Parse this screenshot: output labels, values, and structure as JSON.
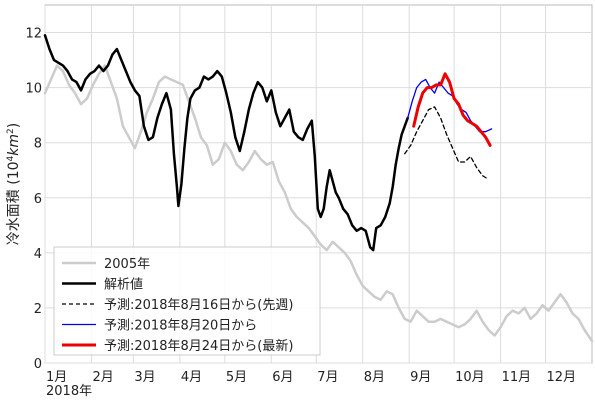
{
  "chart_data": {
    "type": "line",
    "title": "",
    "ylabel_main": "冷水面積 (10",
    "ylabel_exp": "4",
    "ylabel_unit": "km",
    "ylabel_exp2": "2",
    "ylabel_close": ")",
    "xlabel": "",
    "year_label": "2018年",
    "ylim": [
      0,
      13
    ],
    "xlim": [
      0,
      365
    ],
    "grid": true,
    "legend_position": "lower-left",
    "yticks": [
      0,
      2,
      4,
      6,
      8,
      10,
      12
    ],
    "xticks": [
      {
        "label": "1月",
        "day": 0
      },
      {
        "label": "2月",
        "day": 31
      },
      {
        "label": "3月",
        "day": 59
      },
      {
        "label": "4月",
        "day": 90
      },
      {
        "label": "5月",
        "day": 120
      },
      {
        "label": "6月",
        "day": 151
      },
      {
        "label": "7月",
        "day": 181
      },
      {
        "label": "8月",
        "day": 212
      },
      {
        "label": "9月",
        "day": 243
      },
      {
        "label": "10月",
        "day": 273
      },
      {
        "label": "11月",
        "day": 304
      },
      {
        "label": "12月",
        "day": 334
      }
    ],
    "series": [
      {
        "name": "2005年",
        "color": "#cccccc",
        "style": "solid",
        "points": [
          [
            0,
            9.8
          ],
          [
            4,
            10.3
          ],
          [
            8,
            10.8
          ],
          [
            12,
            10.6
          ],
          [
            16,
            10.1
          ],
          [
            20,
            9.8
          ],
          [
            24,
            9.4
          ],
          [
            28,
            9.6
          ],
          [
            32,
            10.1
          ],
          [
            36,
            10.5
          ],
          [
            40,
            10.8
          ],
          [
            44,
            10.2
          ],
          [
            48,
            9.6
          ],
          [
            52,
            8.6
          ],
          [
            56,
            8.2
          ],
          [
            60,
            7.8
          ],
          [
            64,
            8.4
          ],
          [
            68,
            9.1
          ],
          [
            72,
            9.6
          ],
          [
            76,
            10.2
          ],
          [
            80,
            10.4
          ],
          [
            84,
            10.3
          ],
          [
            88,
            10.2
          ],
          [
            92,
            10.1
          ],
          [
            96,
            9.5
          ],
          [
            100,
            8.9
          ],
          [
            104,
            8.2
          ],
          [
            108,
            7.9
          ],
          [
            112,
            7.2
          ],
          [
            116,
            7.4
          ],
          [
            120,
            8.0
          ],
          [
            124,
            7.7
          ],
          [
            128,
            7.2
          ],
          [
            132,
            7.0
          ],
          [
            136,
            7.3
          ],
          [
            140,
            7.7
          ],
          [
            144,
            7.4
          ],
          [
            148,
            7.2
          ],
          [
            152,
            7.3
          ],
          [
            156,
            6.6
          ],
          [
            160,
            6.2
          ],
          [
            164,
            5.6
          ],
          [
            168,
            5.3
          ],
          [
            172,
            5.1
          ],
          [
            176,
            4.9
          ],
          [
            180,
            4.6
          ],
          [
            184,
            4.3
          ],
          [
            188,
            4.1
          ],
          [
            192,
            4.4
          ],
          [
            196,
            4.2
          ],
          [
            200,
            4.0
          ],
          [
            204,
            3.7
          ],
          [
            208,
            3.2
          ],
          [
            212,
            2.8
          ],
          [
            216,
            2.6
          ],
          [
            220,
            2.4
          ],
          [
            224,
            2.3
          ],
          [
            228,
            2.6
          ],
          [
            232,
            2.5
          ],
          [
            236,
            2.0
          ],
          [
            240,
            1.6
          ],
          [
            244,
            1.5
          ],
          [
            248,
            1.9
          ],
          [
            252,
            1.7
          ],
          [
            256,
            1.5
          ],
          [
            260,
            1.5
          ],
          [
            264,
            1.6
          ],
          [
            268,
            1.5
          ],
          [
            272,
            1.4
          ],
          [
            276,
            1.3
          ],
          [
            280,
            1.4
          ],
          [
            284,
            1.6
          ],
          [
            288,
            1.9
          ],
          [
            292,
            1.5
          ],
          [
            296,
            1.2
          ],
          [
            300,
            1.0
          ],
          [
            304,
            1.3
          ],
          [
            308,
            1.7
          ],
          [
            312,
            1.9
          ],
          [
            316,
            1.8
          ],
          [
            320,
            2.0
          ],
          [
            324,
            1.6
          ],
          [
            328,
            1.8
          ],
          [
            332,
            2.1
          ],
          [
            336,
            1.9
          ],
          [
            340,
            2.2
          ],
          [
            344,
            2.5
          ],
          [
            348,
            2.2
          ],
          [
            352,
            1.8
          ],
          [
            356,
            1.6
          ],
          [
            360,
            1.2
          ],
          [
            365,
            0.8
          ]
        ]
      },
      {
        "name": "解析値",
        "color": "#000000",
        "style": "solid",
        "points": [
          [
            0,
            11.9
          ],
          [
            3,
            11.4
          ],
          [
            6,
            11.0
          ],
          [
            9,
            10.9
          ],
          [
            12,
            10.8
          ],
          [
            15,
            10.6
          ],
          [
            18,
            10.3
          ],
          [
            21,
            10.2
          ],
          [
            24,
            9.9
          ],
          [
            27,
            10.3
          ],
          [
            30,
            10.5
          ],
          [
            33,
            10.6
          ],
          [
            36,
            10.8
          ],
          [
            39,
            10.6
          ],
          [
            42,
            10.8
          ],
          [
            45,
            11.2
          ],
          [
            48,
            11.4
          ],
          [
            51,
            11.0
          ],
          [
            54,
            10.6
          ],
          [
            57,
            10.2
          ],
          [
            60,
            9.9
          ],
          [
            63,
            9.7
          ],
          [
            66,
            8.6
          ],
          [
            69,
            8.1
          ],
          [
            72,
            8.2
          ],
          [
            75,
            8.9
          ],
          [
            78,
            9.4
          ],
          [
            81,
            9.8
          ],
          [
            84,
            9.2
          ],
          [
            86,
            7.6
          ],
          [
            88,
            6.4
          ],
          [
            89,
            5.7
          ],
          [
            91,
            6.5
          ],
          [
            93,
            7.8
          ],
          [
            95,
            8.9
          ],
          [
            97,
            9.6
          ],
          [
            100,
            9.9
          ],
          [
            103,
            10.0
          ],
          [
            106,
            10.4
          ],
          [
            109,
            10.3
          ],
          [
            112,
            10.4
          ],
          [
            115,
            10.6
          ],
          [
            118,
            10.4
          ],
          [
            121,
            9.8
          ],
          [
            124,
            9.1
          ],
          [
            127,
            8.2
          ],
          [
            130,
            7.7
          ],
          [
            133,
            8.4
          ],
          [
            136,
            9.2
          ],
          [
            139,
            9.8
          ],
          [
            142,
            10.2
          ],
          [
            145,
            10.0
          ],
          [
            148,
            9.5
          ],
          [
            151,
            9.9
          ],
          [
            154,
            9.1
          ],
          [
            157,
            8.6
          ],
          [
            160,
            8.9
          ],
          [
            163,
            9.2
          ],
          [
            166,
            8.4
          ],
          [
            169,
            8.2
          ],
          [
            172,
            8.1
          ],
          [
            175,
            8.5
          ],
          [
            178,
            8.8
          ],
          [
            180,
            7.5
          ],
          [
            182,
            5.6
          ],
          [
            184,
            5.3
          ],
          [
            186,
            5.6
          ],
          [
            188,
            6.4
          ],
          [
            190,
            7.0
          ],
          [
            192,
            6.6
          ],
          [
            194,
            6.2
          ],
          [
            196,
            6.0
          ],
          [
            199,
            5.6
          ],
          [
            202,
            5.4
          ],
          [
            205,
            5.0
          ],
          [
            208,
            4.8
          ],
          [
            211,
            4.9
          ],
          [
            214,
            4.8
          ],
          [
            217,
            4.2
          ],
          [
            219,
            4.1
          ],
          [
            221,
            4.9
          ],
          [
            224,
            5.0
          ],
          [
            227,
            5.3
          ],
          [
            230,
            5.8
          ],
          [
            232,
            6.4
          ],
          [
            234,
            7.2
          ],
          [
            236,
            7.8
          ],
          [
            238,
            8.3
          ],
          [
            240,
            8.6
          ],
          [
            242,
            8.9
          ]
        ]
      },
      {
        "name": "予測:2018年8月16日から(先週)",
        "color": "#000000",
        "style": "dashed",
        "points": [
          [
            240,
            7.6
          ],
          [
            244,
            7.9
          ],
          [
            248,
            8.4
          ],
          [
            252,
            8.8
          ],
          [
            256,
            9.2
          ],
          [
            260,
            9.3
          ],
          [
            264,
            8.9
          ],
          [
            268,
            8.3
          ],
          [
            272,
            7.8
          ],
          [
            276,
            7.3
          ],
          [
            280,
            7.3
          ],
          [
            284,
            7.5
          ],
          [
            288,
            7.1
          ],
          [
            292,
            6.8
          ],
          [
            295,
            6.7
          ]
        ]
      },
      {
        "name": "予測:2018年8月20日から",
        "color": "#0000ee",
        "style": "solid",
        "points": [
          [
            242,
            8.9
          ],
          [
            245,
            9.5
          ],
          [
            248,
            10.0
          ],
          [
            251,
            10.2
          ],
          [
            254,
            10.3
          ],
          [
            257,
            10.0
          ],
          [
            260,
            9.8
          ],
          [
            263,
            10.2
          ],
          [
            266,
            10.0
          ],
          [
            269,
            9.8
          ],
          [
            272,
            9.7
          ],
          [
            275,
            9.4
          ],
          [
            278,
            9.2
          ],
          [
            281,
            9.1
          ],
          [
            284,
            8.8
          ],
          [
            287,
            8.6
          ],
          [
            290,
            8.4
          ],
          [
            294,
            8.4
          ],
          [
            298,
            8.5
          ]
        ]
      },
      {
        "name": "予測:2018年8月24日から(最新)",
        "color": "#ee0000",
        "style": "solid",
        "points": [
          [
            246,
            8.6
          ],
          [
            249,
            9.3
          ],
          [
            252,
            9.8
          ],
          [
            255,
            10.0
          ],
          [
            258,
            10.0
          ],
          [
            261,
            10.1
          ],
          [
            264,
            10.1
          ],
          [
            267,
            10.5
          ],
          [
            270,
            10.2
          ],
          [
            273,
            9.6
          ],
          [
            276,
            9.4
          ],
          [
            279,
            9.0
          ],
          [
            282,
            8.8
          ],
          [
            285,
            8.7
          ],
          [
            288,
            8.6
          ],
          [
            291,
            8.4
          ],
          [
            294,
            8.2
          ],
          [
            297,
            7.9
          ]
        ]
      }
    ]
  }
}
